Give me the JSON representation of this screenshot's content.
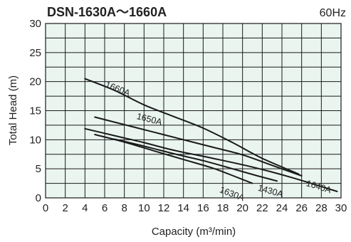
{
  "chart_data": {
    "type": "line",
    "title": "DSN-1630A～1660A",
    "subtitle": "60Hz",
    "xlabel": "Capacity (m³/min)",
    "ylabel": "Total Head (m)",
    "xlim": [
      0,
      30
    ],
    "ylim": [
      0,
      30
    ],
    "x_ticks": [
      0,
      2,
      4,
      6,
      8,
      10,
      12,
      14,
      16,
      18,
      20,
      22,
      24,
      26,
      28,
      30
    ],
    "y_ticks": [
      0,
      5,
      10,
      15,
      20,
      25,
      30
    ],
    "grid": true,
    "plot_background": "#eaf5f0",
    "line_color": "#1a1a1a",
    "series": [
      {
        "name": "1660A",
        "label_at": [
          6.0,
          19.1
        ],
        "points": [
          [
            4,
            20.5
          ],
          [
            7,
            18.5
          ],
          [
            10,
            16
          ],
          [
            13,
            14
          ],
          [
            16,
            12
          ],
          [
            19,
            9.5
          ],
          [
            22,
            6.8
          ],
          [
            25.7,
            4.1
          ]
        ]
      },
      {
        "name": "1650A",
        "label_at": [
          9.2,
          13.6
        ],
        "points": [
          [
            5,
            13.9
          ],
          [
            8,
            12.6
          ],
          [
            11,
            11.3
          ],
          [
            14,
            10
          ],
          [
            17,
            8.7
          ],
          [
            20,
            7.4
          ],
          [
            23,
            5.6
          ],
          [
            26,
            3.8
          ]
        ]
      },
      {
        "name": "1640A",
        "label_at": [
          26.4,
          2.1
        ],
        "points": [
          [
            4,
            11.9
          ],
          [
            7,
            10.7
          ],
          [
            10,
            9.5
          ],
          [
            13,
            8.2
          ],
          [
            17,
            6.8
          ],
          [
            21,
            5.3
          ],
          [
            25,
            3.5
          ],
          [
            29.6,
            1.1
          ]
        ]
      },
      {
        "name": "1430A",
        "label_at": [
          21.5,
          1.3
        ],
        "points": [
          [
            7,
            10.1
          ],
          [
            10,
            8.9
          ],
          [
            13,
            7.6
          ],
          [
            16,
            6.4
          ],
          [
            19,
            5
          ],
          [
            21.5,
            3.8
          ],
          [
            23.5,
            2.9
          ]
        ]
      },
      {
        "name": "1630A",
        "label_at": [
          17.6,
          1.0
        ],
        "points": [
          [
            5,
            10.9
          ],
          [
            8,
            9.6
          ],
          [
            11,
            8.1
          ],
          [
            14,
            6.6
          ],
          [
            17,
            5.1
          ],
          [
            19.5,
            3.5
          ],
          [
            21,
            2.5
          ]
        ]
      }
    ]
  }
}
